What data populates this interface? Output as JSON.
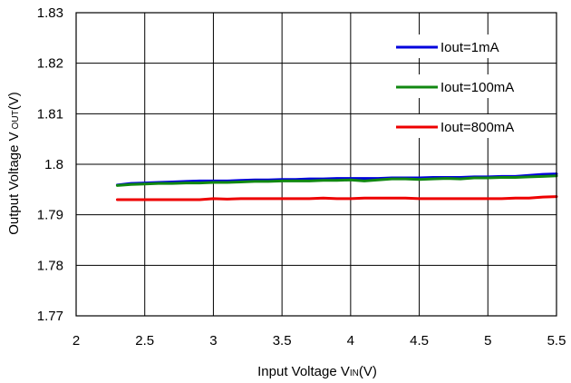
{
  "chart_data": {
    "type": "line",
    "title": "",
    "xlabel": "Input Voltage V",
    "xlabel_sub": "IN",
    "xlabel_unit": "(V)",
    "ylabel": "Output Voltage V",
    "ylabel_sub": "OUT",
    "ylabel_unit": "(V)",
    "xlim": [
      2,
      5.5
    ],
    "ylim": [
      1.77,
      1.83
    ],
    "xticks": [
      2,
      2.5,
      3,
      3.5,
      4,
      4.5,
      5,
      5.5
    ],
    "xtick_labels": [
      "2",
      "2.5",
      "3",
      "3.5",
      "4",
      "4.5",
      "5",
      "5.5"
    ],
    "yticks": [
      1.77,
      1.78,
      1.79,
      1.8,
      1.81,
      1.82,
      1.83
    ],
    "ytick_labels": [
      "1.77",
      "1.78",
      "1.79",
      "1.8",
      "1.81",
      "1.82",
      "1.83"
    ],
    "grid": true,
    "legend_position": "top-right",
    "series": [
      {
        "name": "Iout=1mA",
        "color": "#0000dd",
        "points": [
          [
            2.3,
            1.7959
          ],
          [
            2.4,
            1.7962
          ],
          [
            2.5,
            1.7963
          ],
          [
            2.6,
            1.7964
          ],
          [
            2.7,
            1.7965
          ],
          [
            2.8,
            1.7966
          ],
          [
            2.9,
            1.7967
          ],
          [
            3.0,
            1.7967
          ],
          [
            3.1,
            1.7967
          ],
          [
            3.2,
            1.7968
          ],
          [
            3.3,
            1.7969
          ],
          [
            3.4,
            1.7969
          ],
          [
            3.5,
            1.797
          ],
          [
            3.6,
            1.797
          ],
          [
            3.7,
            1.7971
          ],
          [
            3.8,
            1.7971
          ],
          [
            3.9,
            1.7972
          ],
          [
            4.0,
            1.7972
          ],
          [
            4.1,
            1.7972
          ],
          [
            4.2,
            1.7972
          ],
          [
            4.3,
            1.7973
          ],
          [
            4.4,
            1.7973
          ],
          [
            4.5,
            1.7973
          ],
          [
            4.6,
            1.7974
          ],
          [
            4.7,
            1.7974
          ],
          [
            4.8,
            1.7974
          ],
          [
            4.9,
            1.7975
          ],
          [
            5.0,
            1.7975
          ],
          [
            5.1,
            1.7976
          ],
          [
            5.2,
            1.7976
          ],
          [
            5.3,
            1.7978
          ],
          [
            5.4,
            1.798
          ],
          [
            5.5,
            1.7981
          ]
        ]
      },
      {
        "name": "Iout=100mA",
        "color": "#118811",
        "points": [
          [
            2.3,
            1.7958
          ],
          [
            2.4,
            1.796
          ],
          [
            2.5,
            1.7961
          ],
          [
            2.6,
            1.7962
          ],
          [
            2.7,
            1.7962
          ],
          [
            2.8,
            1.7963
          ],
          [
            2.9,
            1.7963
          ],
          [
            3.0,
            1.7964
          ],
          [
            3.1,
            1.7964
          ],
          [
            3.2,
            1.7965
          ],
          [
            3.3,
            1.7966
          ],
          [
            3.4,
            1.7966
          ],
          [
            3.5,
            1.7967
          ],
          [
            3.6,
            1.7967
          ],
          [
            3.7,
            1.7967
          ],
          [
            3.8,
            1.7968
          ],
          [
            3.9,
            1.7968
          ],
          [
            4.0,
            1.7969
          ],
          [
            4.1,
            1.7967
          ],
          [
            4.2,
            1.7969
          ],
          [
            4.3,
            1.7971
          ],
          [
            4.4,
            1.7971
          ],
          [
            4.5,
            1.797
          ],
          [
            4.6,
            1.7971
          ],
          [
            4.7,
            1.7972
          ],
          [
            4.8,
            1.7971
          ],
          [
            4.9,
            1.7973
          ],
          [
            5.0,
            1.7973
          ],
          [
            5.1,
            1.7974
          ],
          [
            5.2,
            1.7974
          ],
          [
            5.3,
            1.7975
          ],
          [
            5.4,
            1.7976
          ],
          [
            5.5,
            1.7977
          ]
        ]
      },
      {
        "name": "Iout=800mA",
        "color": "#ee0000",
        "points": [
          [
            2.3,
            1.793
          ],
          [
            2.4,
            1.793
          ],
          [
            2.5,
            1.793
          ],
          [
            2.6,
            1.793
          ],
          [
            2.7,
            1.793
          ],
          [
            2.8,
            1.793
          ],
          [
            2.9,
            1.793
          ],
          [
            3.0,
            1.7932
          ],
          [
            3.1,
            1.7931
          ],
          [
            3.2,
            1.7932
          ],
          [
            3.3,
            1.7932
          ],
          [
            3.4,
            1.7932
          ],
          [
            3.5,
            1.7932
          ],
          [
            3.6,
            1.7932
          ],
          [
            3.7,
            1.7932
          ],
          [
            3.8,
            1.7933
          ],
          [
            3.9,
            1.7932
          ],
          [
            4.0,
            1.7932
          ],
          [
            4.1,
            1.7933
          ],
          [
            4.2,
            1.7933
          ],
          [
            4.3,
            1.7933
          ],
          [
            4.4,
            1.7933
          ],
          [
            4.5,
            1.7932
          ],
          [
            4.6,
            1.7932
          ],
          [
            4.7,
            1.7932
          ],
          [
            4.8,
            1.7932
          ],
          [
            4.9,
            1.7932
          ],
          [
            5.0,
            1.7932
          ],
          [
            5.1,
            1.7932
          ],
          [
            5.2,
            1.7933
          ],
          [
            5.3,
            1.7933
          ],
          [
            5.4,
            1.7935
          ],
          [
            5.5,
            1.7936
          ]
        ]
      }
    ]
  }
}
